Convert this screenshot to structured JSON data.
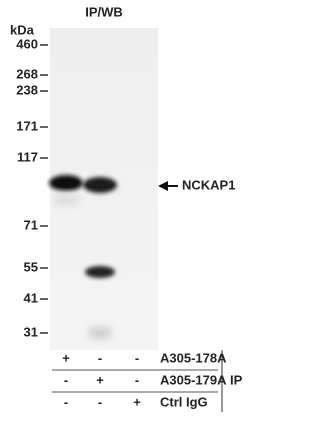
{
  "header": {
    "title": "IP/WB",
    "unit": "kDa"
  },
  "markers": [
    "460",
    "268",
    "238",
    "171",
    "117",
    "71",
    "55",
    "41",
    "31"
  ],
  "target": "NCKAP1",
  "table": {
    "rows": [
      {
        "label": "A305-178A",
        "cells": [
          "+",
          "-",
          "-"
        ]
      },
      {
        "label": "A305-179A",
        "cells": [
          "-",
          "+",
          "-"
        ]
      },
      {
        "label": "Ctrl IgG",
        "cells": [
          "-",
          "-",
          "+"
        ]
      }
    ],
    "group": "IP"
  }
}
